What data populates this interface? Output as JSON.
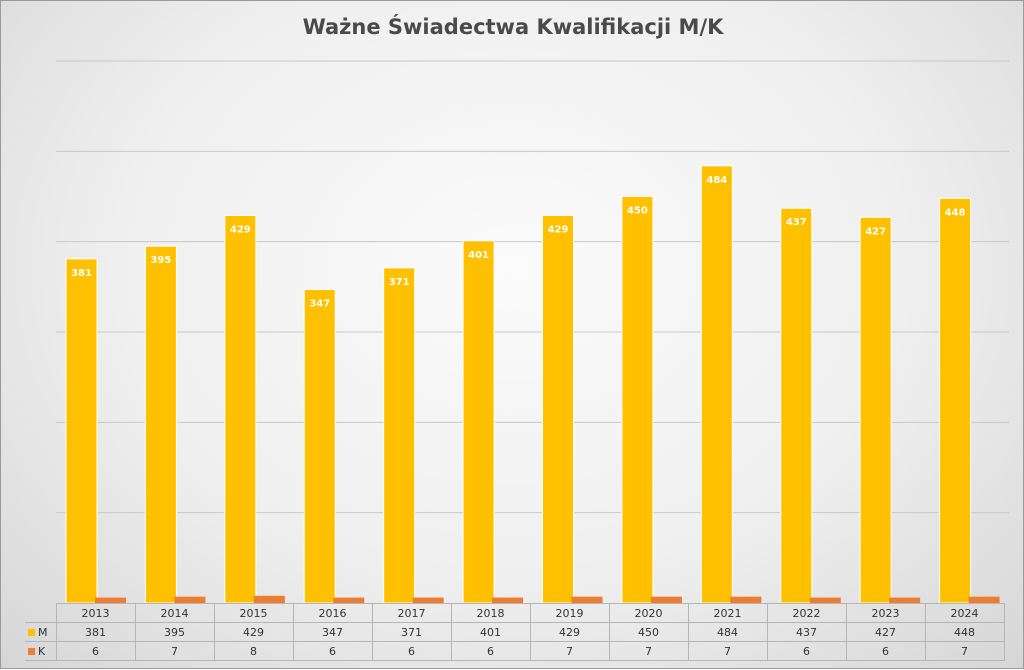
{
  "chart_data": {
    "type": "bar",
    "title": "Ważne Świadectwa Kwalifikacji M/K",
    "categories": [
      "2013",
      "2014",
      "2015",
      "2016",
      "2017",
      "2018",
      "2019",
      "2020",
      "2021",
      "2022",
      "2023",
      "2024"
    ],
    "series": [
      {
        "name": "M",
        "color": "#FFC000",
        "values": [
          381,
          395,
          429,
          347,
          371,
          401,
          429,
          450,
          484,
          437,
          427,
          448
        ]
      },
      {
        "name": "K",
        "color": "#ED7D31",
        "values": [
          6,
          7,
          8,
          6,
          6,
          6,
          7,
          7,
          7,
          6,
          6,
          7
        ]
      }
    ],
    "ylim": [
      0,
      600
    ],
    "gridlines": true,
    "data_labels": "M series only, inside top of bars",
    "legend": "data table below chart"
  }
}
